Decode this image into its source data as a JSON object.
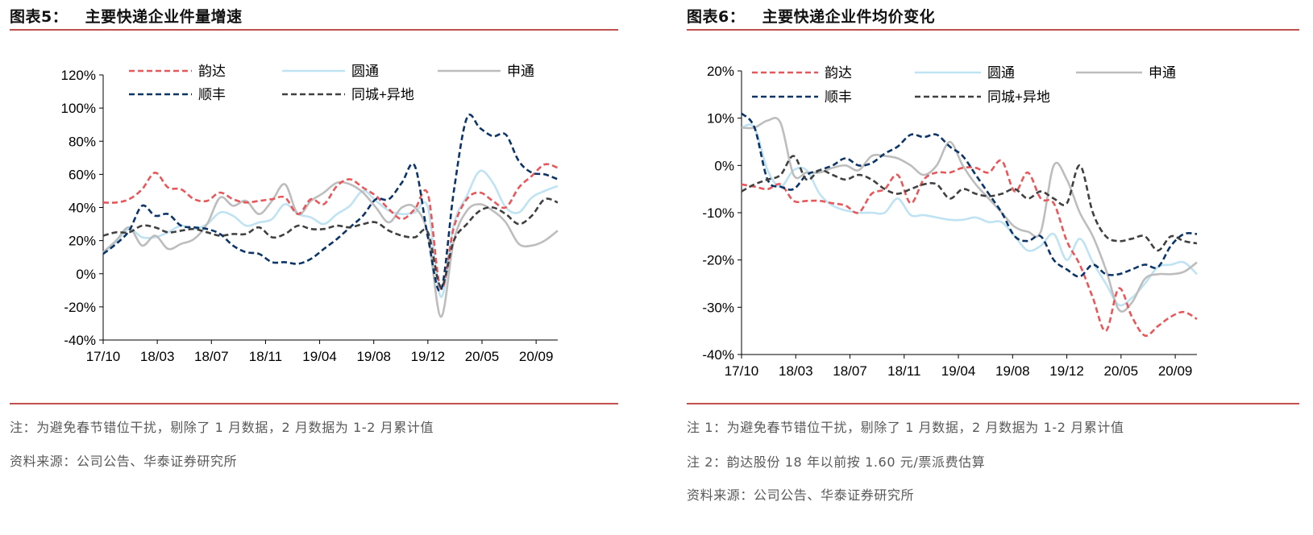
{
  "colors": {
    "yunda": "#e8575a",
    "yuantong": "#bfe3f2",
    "shentong": "#bdbdbd",
    "sf": "#0b3467",
    "tongcheng": "#404040",
    "rule": "#c0504d",
    "note": "#595959"
  },
  "left": {
    "title": "图表5：   主要快递企业件量增速",
    "notes": [
      "注：为避免春节错位干扰，剔除了 1 月数据，2 月数据为 1-2 月累计值",
      "资料来源：公司公告、华泰证券研究所"
    ]
  },
  "right": {
    "title": "图表6：   主要快递企业件均价变化",
    "notes": [
      "注 1：为避免春节错位干扰，剔除了 1 月数据，2 月数据为 1-2 月累计值",
      "注 2：韵达股份 18 年以前按 1.60 元/票派费估算",
      "资料来源：公司公告、华泰证券研究所"
    ]
  },
  "chart_data": [
    {
      "type": "line",
      "title": "主要快递企业件量增速",
      "x_tick_labels": [
        "17/10",
        "18/03",
        "18/07",
        "18/11",
        "19/04",
        "19/08",
        "19/12",
        "20/05",
        "20/09"
      ],
      "y_tick_labels": [
        "120%",
        "100%",
        "80%",
        "60%",
        "40%",
        "20%",
        "0%",
        "-20%",
        "-40%"
      ],
      "ylim": [
        -40,
        120
      ],
      "n_points": 36,
      "series": [
        {
          "name": "韵达",
          "key": "yunda",
          "dash": true,
          "values": [
            43,
            43,
            45,
            51,
            61,
            52,
            51,
            45,
            44,
            49,
            45,
            43,
            44,
            45,
            46,
            36,
            45,
            42,
            53,
            57,
            52,
            47,
            39,
            33,
            39,
            48,
            -9,
            28,
            45,
            49,
            44,
            40,
            52,
            59,
            66,
            64
          ]
        },
        {
          "name": "圆通",
          "key": "yuantong",
          "dash": false,
          "values": [
            12,
            19,
            27,
            22,
            22,
            25,
            29,
            27,
            30,
            37,
            35,
            29,
            31,
            33,
            42,
            36,
            34,
            30,
            36,
            41,
            50,
            44,
            38,
            36,
            37,
            40,
            -14,
            30,
            47,
            62,
            55,
            40,
            37,
            46,
            50,
            53
          ]
        },
        {
          "name": "申通",
          "key": "shentong",
          "dash": false,
          "values": [
            13,
            20,
            28,
            17,
            23,
            15,
            18,
            21,
            30,
            46,
            41,
            44,
            36,
            44,
            54,
            36,
            44,
            49,
            55,
            54,
            49,
            40,
            31,
            40,
            40,
            24,
            -26,
            20,
            38,
            42,
            38,
            31,
            18,
            17,
            20,
            26
          ]
        },
        {
          "name": "顺丰",
          "key": "sf",
          "dash": true,
          "values": [
            12,
            18,
            26,
            41,
            35,
            36,
            29,
            28,
            27,
            24,
            17,
            13,
            12,
            7,
            7,
            6,
            9,
            15,
            21,
            28,
            35,
            45,
            45,
            55,
            65,
            22,
            -10,
            50,
            94,
            88,
            83,
            84,
            68,
            61,
            60,
            57
          ]
        },
        {
          "name": "同城+异地",
          "key": "tongcheng",
          "dash": true,
          "values": [
            23,
            25,
            25,
            29,
            28,
            25,
            26,
            27,
            25,
            23,
            24,
            24,
            28,
            22,
            24,
            29,
            27,
            27,
            29,
            28,
            30,
            31,
            26,
            23,
            22,
            25,
            -8,
            20,
            30,
            38,
            40,
            36,
            30,
            35,
            45,
            43
          ]
        }
      ]
    },
    {
      "type": "line",
      "title": "主要快递企业件均价变化",
      "x_tick_labels": [
        "17/10",
        "18/03",
        "18/07",
        "18/11",
        "19/04",
        "19/08",
        "19/12",
        "20/05",
        "20/09"
      ],
      "y_tick_labels": [
        "20%",
        "10%",
        "0%",
        "-10%",
        "-20%",
        "-30%",
        "-40%"
      ],
      "ylim": [
        -40,
        20
      ],
      "n_points": 36,
      "series": [
        {
          "name": "韵达",
          "key": "yunda",
          "dash": true,
          "values": [
            -4,
            -4.5,
            -5,
            -4,
            -7.5,
            -7.5,
            -7.5,
            -8,
            -8.5,
            -10,
            -6,
            -5,
            -2,
            -8,
            -3,
            -1.5,
            -1.5,
            -0.5,
            -0.5,
            -1.5,
            1,
            -5.5,
            -1.5,
            -7,
            -8,
            -16,
            -21,
            -28,
            -35,
            -26,
            -32,
            -36,
            -34,
            -32,
            -31,
            -32.5
          ]
        },
        {
          "name": "圆通",
          "key": "yuantong",
          "dash": false,
          "values": [
            8,
            8,
            -1,
            -4.5,
            -1,
            -1,
            -6,
            -8.5,
            -9.5,
            -10,
            -10,
            -10,
            -7,
            -10.5,
            -10.5,
            -11,
            -11.5,
            -11.5,
            -11,
            -12,
            -12,
            -15,
            -18,
            -17,
            -14.5,
            -20,
            -15.5,
            -20.5,
            -25,
            -29.5,
            -28,
            -25,
            -21.5,
            -21,
            -20.5,
            -23
          ]
        },
        {
          "name": "申通",
          "key": "shentong",
          "dash": false,
          "values": [
            8,
            8,
            9.5,
            9,
            -2,
            -1.5,
            -1.5,
            -0.5,
            0,
            -1,
            2,
            2,
            1.5,
            0,
            -2,
            0,
            5,
            0,
            -4,
            -7,
            -10,
            -13,
            -14,
            -14,
            0,
            -3,
            -10,
            -15,
            -22,
            -30.5,
            -29,
            -24,
            -23,
            -23,
            -22.5,
            -20.5
          ]
        },
        {
          "name": "顺丰",
          "key": "sf",
          "dash": true,
          "values": [
            11,
            8,
            -3,
            -4.5,
            -5,
            -2,
            -1,
            0,
            1.5,
            0,
            0.5,
            2.5,
            4,
            6.5,
            6,
            6.5,
            4,
            2,
            -2,
            -6,
            -10,
            -15,
            -16,
            -15,
            -20,
            -22,
            -23.5,
            -21,
            -23,
            -23,
            -22,
            -21,
            -21.5,
            -17,
            -14.5,
            -14.5
          ]
        },
        {
          "name": "同城+异地",
          "key": "tongcheng",
          "dash": true,
          "values": [
            -5.5,
            -4,
            -3,
            -2,
            2,
            -3,
            -1,
            -2,
            -3,
            -2,
            -3,
            -5,
            -6,
            -5,
            -4,
            -4,
            -7,
            -5,
            -6,
            -6.5,
            -6,
            -5,
            -7,
            -5.5,
            -7,
            -8,
            0,
            -10,
            -15,
            -16,
            -15.5,
            -15,
            -18,
            -15,
            -16,
            -16.5
          ]
        }
      ],
      "legend": [
        "韵达",
        "圆通",
        "申通",
        "顺丰",
        "同城+异地"
      ]
    }
  ]
}
